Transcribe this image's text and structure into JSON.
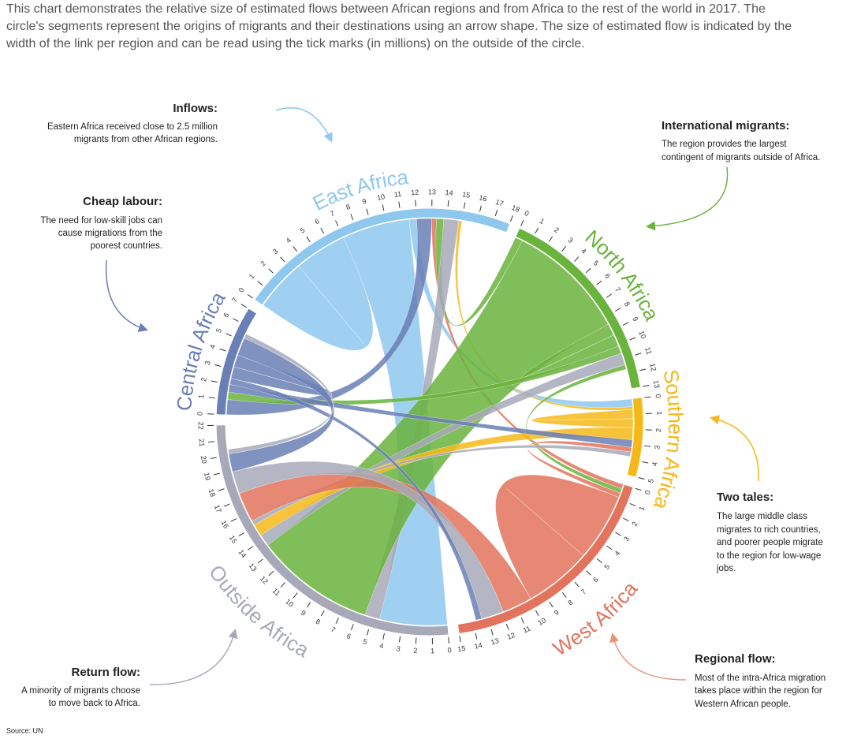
{
  "chart_data": {
    "type": "chord",
    "intro": [
      "This chart demonstrates the relative size of estimated flows between African regions and from Africa to the rest of the world in 2017. The",
      "circle's segments represent the origins of migrants and their destinations using an arrow shape. The size of estimated flow is indicated by the",
      "width of the link per region and can be read using the tick marks (in millions) on the outside of the circle."
    ],
    "source": "Source:  UN",
    "regions": [
      {
        "name": "East Africa",
        "color": "#8ec8ee",
        "ticks": [
          0,
          1,
          2,
          3,
          4,
          5,
          6,
          7,
          8,
          9,
          10,
          11,
          12,
          13,
          14,
          15,
          16,
          17,
          18
        ]
      },
      {
        "name": "North Africa",
        "color": "#6ab33c",
        "ticks": [
          0,
          1,
          2,
          3,
          4,
          5,
          6,
          7,
          8,
          9,
          10,
          11,
          12,
          13
        ]
      },
      {
        "name": "Southern Africa",
        "color": "#f6b818",
        "ticks": [
          0,
          1,
          2,
          3,
          4,
          5
        ]
      },
      {
        "name": "West Africa",
        "color": "#e2735c",
        "ticks": [
          0,
          1,
          2,
          3,
          4,
          5,
          6,
          7,
          8,
          9,
          10,
          11,
          12,
          13,
          14,
          15
        ]
      },
      {
        "name": "Outside Africa",
        "color": "#a7a9b8",
        "ticks": [
          0,
          1,
          2,
          3,
          4,
          5,
          6,
          7,
          8,
          9,
          10,
          11,
          12,
          13,
          14,
          15,
          16,
          17,
          18,
          19,
          20,
          21,
          22
        ]
      },
      {
        "name": "Central Africa",
        "color": "#6a7fb5",
        "ticks": [
          0,
          1,
          2,
          3,
          4,
          5,
          6,
          7
        ]
      }
    ],
    "flows": [
      {
        "from": 0,
        "to": 0,
        "value": 3.5
      },
      {
        "from": 0,
        "to": 4,
        "value": 4.5
      },
      {
        "from": 0,
        "to": 2,
        "value": 0.5
      },
      {
        "from": 5,
        "to": 0,
        "value": 1
      },
      {
        "from": 3,
        "to": 0,
        "value": 0.3
      },
      {
        "from": 1,
        "to": 0,
        "value": 0.5
      },
      {
        "from": 4,
        "to": 0,
        "value": 1
      },
      {
        "from": 2,
        "to": 0,
        "value": 0.2
      },
      {
        "from": 1,
        "to": 4,
        "value": 8
      },
      {
        "from": 1,
        "to": 1,
        "value": 0.8
      },
      {
        "from": 1,
        "to": 5,
        "value": 0.5
      },
      {
        "from": 4,
        "to": 1,
        "value": 0.8
      },
      {
        "from": 1,
        "to": 3,
        "value": 0.3
      },
      {
        "from": 2,
        "to": 2,
        "value": 0.6
      },
      {
        "from": 2,
        "to": 4,
        "value": 0.8
      },
      {
        "from": 5,
        "to": 2,
        "value": 0.5
      },
      {
        "from": 3,
        "to": 2,
        "value": 0.3
      },
      {
        "from": 4,
        "to": 2,
        "value": 0.3
      },
      {
        "from": 3,
        "to": 3,
        "value": 4.5
      },
      {
        "from": 3,
        "to": 4,
        "value": 2
      },
      {
        "from": 4,
        "to": 3,
        "value": 1.5
      },
      {
        "from": 5,
        "to": 3,
        "value": 0.4
      },
      {
        "from": 5,
        "to": 5,
        "value": 0.8
      },
      {
        "from": 5,
        "to": 4,
        "value": 1.2
      },
      {
        "from": 4,
        "to": 5,
        "value": 0.3
      }
    ],
    "annotations": [
      {
        "title": "Inflows:",
        "lines": [
          "Eastern Africa received close to 2.5 million",
          "migrants from other African regions."
        ]
      },
      {
        "title": "Cheap labour:",
        "lines": [
          "The need for low-skill jobs can",
          "cause migrations from the",
          "poorest countries."
        ]
      },
      {
        "title": "Return flow:",
        "lines": [
          "A minority of migrants choose",
          "to move back to Africa."
        ]
      },
      {
        "title": "International migrants:",
        "lines": [
          "The region provides the largest",
          "contingent of migrants outside of Africa."
        ]
      },
      {
        "title": "Two tales:",
        "lines": [
          "The large middle class",
          "migrates to rich countries,",
          "and poorer people migrate",
          "to the region for low-wage",
          "jobs."
        ]
      },
      {
        "title": "Regional flow:",
        "lines": [
          "Most of the intra-Africa migration",
          "takes place within the region for",
          "Western African people."
        ]
      }
    ]
  }
}
